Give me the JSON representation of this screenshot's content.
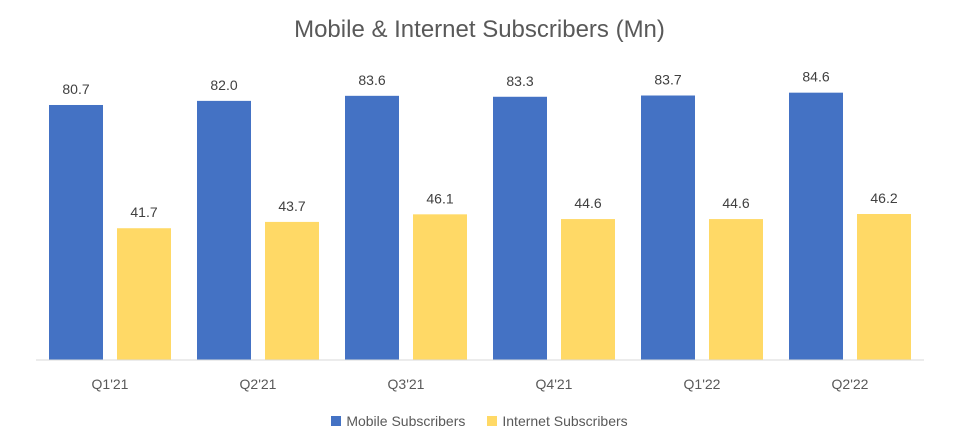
{
  "chart_data": {
    "type": "bar",
    "title": "Mobile & Internet Subscribers (Mn)",
    "categories": [
      "Q1'21",
      "Q2'21",
      "Q3'21",
      "Q4'21",
      "Q1'22",
      "Q2'22"
    ],
    "series": [
      {
        "name": "Mobile Subscribers",
        "color": "#4472C4",
        "values": [
          80.7,
          82.0,
          83.6,
          83.3,
          83.7,
          84.6
        ],
        "labels": [
          "80.7",
          "82.0",
          "83.6",
          "83.3",
          "83.7",
          "84.6"
        ]
      },
      {
        "name": "Internet Subscribers",
        "color": "#FFD966",
        "values": [
          41.7,
          43.7,
          46.1,
          44.6,
          44.6,
          46.2
        ],
        "labels": [
          "41.7",
          "43.7",
          "46.1",
          "44.6",
          "44.6",
          "46.2"
        ]
      }
    ],
    "ylim": [
      0,
      100
    ],
    "grid": false,
    "legend": "bottom"
  }
}
